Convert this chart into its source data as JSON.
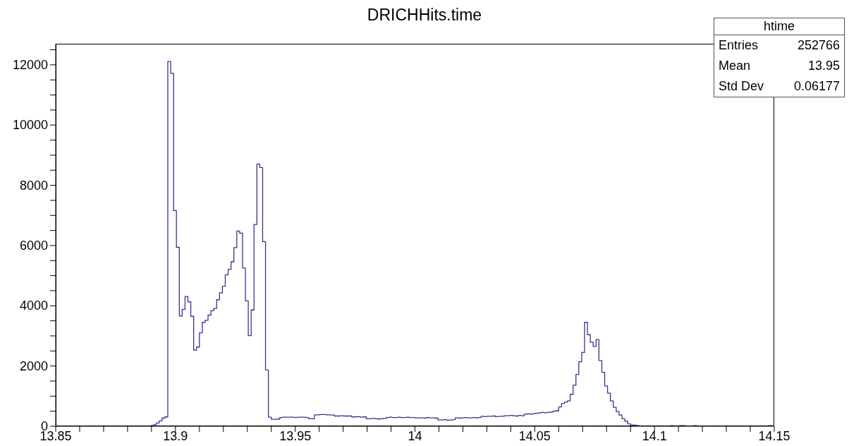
{
  "chart_data": {
    "type": "histogram",
    "title": "DRICHHits.time",
    "color": "#35358f",
    "bins": [
      13.85,
      13.8512,
      13.8524,
      13.8536,
      13.8548,
      13.856,
      13.8572,
      13.8584,
      13.8596,
      13.8608,
      13.862,
      13.8632,
      13.8644,
      13.8656,
      13.8668,
      13.868,
      13.8692,
      13.8704,
      13.8716,
      13.8728,
      13.874,
      13.8752,
      13.8764,
      13.8776,
      13.8788,
      13.88,
      13.8812,
      13.8824,
      13.8836,
      13.8848,
      13.886,
      13.8872,
      13.8884,
      13.8896,
      13.8908,
      13.892,
      13.8932,
      13.8944,
      13.8956,
      13.8968,
      13.898,
      13.8992,
      13.9004,
      13.9016,
      13.9028,
      13.904,
      13.9052,
      13.9064,
      13.9076,
      13.9088,
      13.91,
      13.9112,
      13.9124,
      13.9136,
      13.9148,
      13.916,
      13.9172,
      13.9184,
      13.9196,
      13.9208,
      13.922,
      13.9232,
      13.9244,
      13.9256,
      13.9268,
      13.928,
      13.9292,
      13.9304,
      13.9316,
      13.9328,
      13.934,
      13.9352,
      13.9364,
      13.9376,
      13.9388,
      13.94,
      13.9412,
      13.9424,
      13.9436,
      13.9448,
      13.946,
      13.9472,
      13.9484,
      13.9496,
      13.9508,
      13.952,
      13.9532,
      13.9544,
      13.9556,
      13.9568,
      13.958,
      13.9592,
      13.9604,
      13.9616,
      13.9628,
      13.964,
      13.9652,
      13.9664,
      13.9676,
      13.9688,
      13.97,
      13.9712,
      13.9724,
      13.9736,
      13.9748,
      13.976,
      13.9772,
      13.9784,
      13.9796,
      13.9808,
      13.982,
      13.9832,
      13.9844,
      13.9856,
      13.9868,
      13.988,
      13.9892,
      13.9904,
      13.9916,
      13.9928,
      13.994,
      13.9952,
      13.9964,
      13.9976,
      13.9988,
      14,
      14.0012,
      14.0024,
      14.0036,
      14.0048,
      14.006,
      14.0072,
      14.0084,
      14.0096,
      14.0108,
      14.012,
      14.0132,
      14.0144,
      14.0156,
      14.0168,
      14.018,
      14.0192,
      14.0204,
      14.0216,
      14.0228,
      14.024,
      14.0252,
      14.0264,
      14.0276,
      14.0288,
      14.03,
      14.0312,
      14.0324,
      14.0336,
      14.0348,
      14.036,
      14.0372,
      14.0384,
      14.0396,
      14.0408,
      14.042,
      14.0432,
      14.0444,
      14.0456,
      14.0468,
      14.048,
      14.0492,
      14.0504,
      14.0516,
      14.0528,
      14.054,
      14.0552,
      14.0564,
      14.0576,
      14.0588,
      14.06,
      14.0612,
      14.0624,
      14.0636,
      14.0648,
      14.066,
      14.0672,
      14.0684,
      14.0696,
      14.0708,
      14.072,
      14.0732,
      14.0744,
      14.0756,
      14.0768,
      14.078,
      14.0792,
      14.0804,
      14.0816,
      14.0828,
      14.084,
      14.0852,
      14.0864,
      14.0876,
      14.0888,
      14.09,
      14.0912,
      14.0924,
      14.0936,
      14.0948,
      14.096,
      14.0972,
      14.0984,
      14.0996,
      14.1008,
      14.102,
      14.1032,
      14.1044,
      14.1056,
      14.1068,
      14.108,
      14.1092,
      14.1104,
      14.1116,
      14.1128,
      14.114,
      14.1152,
      14.1164,
      14.1176,
      14.1188,
      14.12,
      14.1212,
      14.1224,
      14.1236,
      14.1248,
      14.126,
      14.1272,
      14.1284,
      14.1296,
      14.1308,
      14.132,
      14.1332,
      14.1344,
      14.1356,
      14.1368,
      14.138,
      14.1392,
      14.1404,
      14.1416,
      14.1428,
      14.144,
      14.1452,
      14.1464,
      14.1476,
      14.1488,
      14.15
    ],
    "values": [
      0,
      0,
      0,
      0,
      0,
      0,
      0,
      0,
      0,
      0,
      0,
      0,
      0,
      0,
      0,
      0,
      0,
      0,
      0,
      0,
      0,
      0,
      0,
      0,
      0,
      0,
      0,
      0,
      0,
      0,
      0,
      0,
      0,
      20,
      50,
      110,
      180,
      270,
      310,
      12110,
      11720,
      7160,
      5940,
      3660,
      3880,
      4310,
      4130,
      3650,
      2530,
      2630,
      3100,
      3450,
      3520,
      3690,
      3840,
      3910,
      4200,
      4430,
      4650,
      5030,
      5210,
      5460,
      5930,
      6480,
      6410,
      5250,
      4160,
      3010,
      3860,
      6700,
      8710,
      8590,
      6130,
      1870,
      300,
      230,
      230,
      240,
      290,
      300,
      300,
      300,
      300,
      290,
      300,
      300,
      300,
      290,
      250,
      250,
      380,
      380,
      390,
      390,
      380,
      380,
      370,
      340,
      340,
      350,
      340,
      340,
      340,
      310,
      310,
      320,
      300,
      310,
      250,
      250,
      260,
      250,
      240,
      250,
      260,
      290,
      300,
      290,
      290,
      300,
      290,
      290,
      300,
      290,
      290,
      280,
      280,
      280,
      270,
      290,
      280,
      280,
      270,
      210,
      210,
      220,
      200,
      210,
      220,
      280,
      270,
      280,
      290,
      280,
      280,
      290,
      280,
      290,
      330,
      320,
      330,
      330,
      340,
      320,
      330,
      330,
      350,
      350,
      360,
      350,
      340,
      360,
      350,
      400,
      410,
      400,
      420,
      430,
      450,
      460,
      450,
      460,
      470,
      500,
      510,
      640,
      760,
      800,
      840,
      1060,
      1360,
      1720,
      2140,
      2450,
      3450,
      3040,
      2790,
      2650,
      2880,
      2180,
      1790,
      1340,
      1100,
      840,
      630,
      490,
      370,
      250,
      170,
      80,
      40,
      40,
      20,
      10,
      10,
      10,
      10,
      10,
      10,
      10,
      10,
      10,
      10,
      10,
      20,
      10,
      10,
      20,
      20,
      10,
      10,
      10,
      20,
      10,
      10,
      10,
      10,
      10,
      0,
      10,
      10,
      0,
      0,
      10,
      10,
      0,
      0,
      0,
      10,
      10,
      0,
      10,
      0,
      0,
      0,
      10,
      10,
      10,
      20,
      10
    ],
    "xlim": [
      13.85,
      14.15
    ],
    "xticks": [
      13.85,
      {
        "value": 13.86,
        "label": null
      },
      {
        "value": 13.87,
        "label": null
      },
      {
        "value": 13.88,
        "label": null
      },
      {
        "value": 13.89,
        "label": null
      },
      13.9,
      {
        "value": 13.91,
        "label": null
      },
      {
        "value": 13.92,
        "label": null
      },
      {
        "value": 13.93,
        "label": null
      },
      {
        "value": 13.94,
        "label": null
      },
      13.95,
      {
        "value": 13.96,
        "label": null
      },
      {
        "value": 13.97,
        "label": null
      },
      {
        "value": 13.98,
        "label": null
      },
      {
        "value": 13.99,
        "label": null
      },
      14,
      {
        "value": 14.01,
        "label": null
      },
      {
        "value": 14.02,
        "label": null
      },
      {
        "value": 14.03,
        "label": null
      },
      {
        "value": 14.04,
        "label": null
      },
      14.05,
      {
        "value": 14.06,
        "label": null
      },
      {
        "value": 14.07,
        "label": null
      },
      {
        "value": 14.08,
        "label": null
      },
      {
        "value": 14.09,
        "label": null
      },
      14.1,
      {
        "value": 14.11,
        "label": null
      },
      {
        "value": 14.12,
        "label": null
      },
      {
        "value": 14.13,
        "label": null
      },
      {
        "value": 14.14,
        "label": null
      },
      14.15
    ],
    "ylim": [
      0,
      12700
    ],
    "yticks": [
      0,
      {
        "value": 500,
        "label": null
      },
      {
        "value": 1000,
        "label": null
      },
      {
        "value": 1500,
        "label": null
      },
      2000,
      {
        "value": 2500,
        "label": null
      },
      {
        "value": 3000,
        "label": null
      },
      {
        "value": 3500,
        "label": null
      },
      4000,
      {
        "value": 4500,
        "label": null
      },
      {
        "value": 5000,
        "label": null
      },
      {
        "value": 5500,
        "label": null
      },
      6000,
      {
        "value": 6500,
        "label": null
      },
      {
        "value": 7000,
        "label": null
      },
      {
        "value": 7500,
        "label": null
      },
      8000,
      {
        "value": 8500,
        "label": null
      },
      {
        "value": 9000,
        "label": null
      },
      {
        "value": 9500,
        "label": null
      },
      10000,
      {
        "value": 10500,
        "label": null
      },
      {
        "value": 11000,
        "label": null
      },
      {
        "value": 11500,
        "label": null
      },
      12000,
      {
        "value": 12500,
        "label": null
      }
    ],
    "annotations": [
      "htime",
      "Entries",
      "252766",
      "Mean",
      "13.95",
      "Std Dev",
      "0.06177"
    ]
  }
}
